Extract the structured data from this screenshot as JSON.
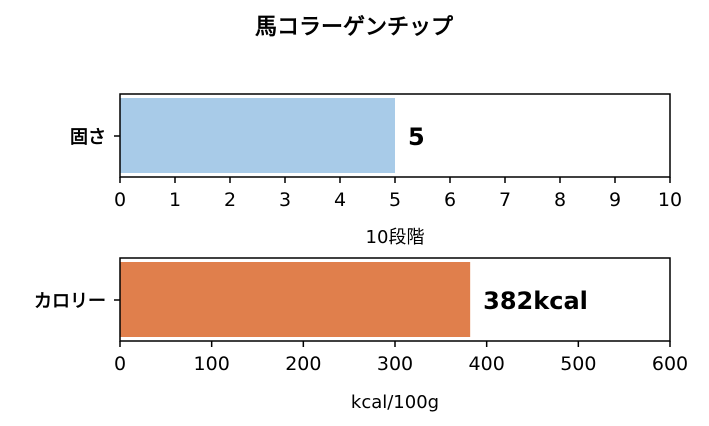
{
  "chart_data": {
    "title": "馬コラーゲンチップ",
    "panels": [
      {
        "type": "bar",
        "orientation": "horizontal",
        "categories": [
          "固さ"
        ],
        "values": [
          5
        ],
        "value_labels": [
          "5"
        ],
        "xlabel": "10段階",
        "xlim": [
          0,
          10
        ],
        "xticks": [
          0,
          1,
          2,
          3,
          4,
          5,
          6,
          7,
          8,
          9,
          10
        ],
        "color": "#a8cbe8",
        "grid": false
      },
      {
        "type": "bar",
        "orientation": "horizontal",
        "categories": [
          "カロリー"
        ],
        "values": [
          382
        ],
        "value_labels": [
          "382kcal"
        ],
        "xlabel": "kcal/100g",
        "xlim": [
          0,
          600
        ],
        "xticks": [
          0,
          100,
          200,
          300,
          400,
          500,
          600
        ],
        "color": "#e07f4c",
        "grid": false
      }
    ]
  }
}
